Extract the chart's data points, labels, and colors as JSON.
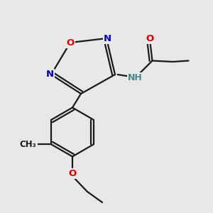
{
  "bg_color": "#e8e8e8",
  "bond_color": "#1a1a1a",
  "atom_colors": {
    "O": "#dd0000",
    "N": "#0000cc",
    "C": "#1a1a1a",
    "H": "#4a8888"
  },
  "figsize": [
    3.0,
    3.0
  ],
  "dpi": 100
}
